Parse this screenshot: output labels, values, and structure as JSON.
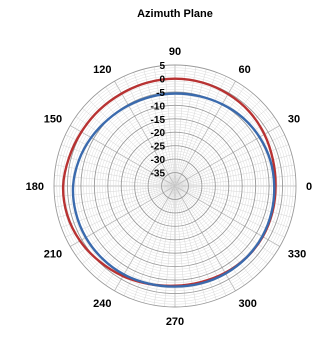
{
  "chart_data": {
    "type": "polar-line",
    "title": "Azimuth Plane",
    "angle_ticks": [
      "0",
      "30",
      "60",
      "90",
      "120",
      "150",
      "180",
      "210",
      "240",
      "270",
      "300",
      "330"
    ],
    "angle_tick_values": [
      0,
      30,
      60,
      90,
      120,
      150,
      180,
      210,
      240,
      270,
      300,
      330
    ],
    "radial_ticks": [
      "5",
      "0",
      "-5",
      "-10",
      "-15",
      "-20",
      "-25",
      "-30",
      "-35"
    ],
    "radial_tick_values": [
      5,
      0,
      -5,
      -10,
      -15,
      -20,
      -25,
      -30,
      -35
    ],
    "rlim": [
      -40,
      5
    ],
    "grid": true,
    "series": [
      {
        "color": "#b83232",
        "angles": [
          0,
          15,
          30,
          45,
          60,
          75,
          90,
          105,
          120,
          135,
          150,
          165,
          180,
          195,
          210,
          225,
          240,
          255,
          270,
          285,
          300,
          315,
          330,
          345
        ],
        "values": [
          -2.6,
          -2.3,
          -1.6,
          -0.9,
          -0.5,
          -0.2,
          -0.1,
          -0.2,
          -0.3,
          -0.1,
          0.2,
          0.8,
          1.6,
          1.5,
          0.8,
          -0.3,
          -1.3,
          -2.3,
          -2.9,
          -3.0,
          -2.7,
          -2.4,
          -2.3,
          -2.5
        ]
      },
      {
        "color": "#3a6aad",
        "angles": [
          0,
          15,
          30,
          45,
          60,
          75,
          90,
          105,
          120,
          135,
          150,
          165,
          180,
          195,
          210,
          225,
          240,
          255,
          270,
          285,
          300,
          315,
          330,
          345
        ],
        "values": [
          -3.1,
          -3.3,
          -3.7,
          -4.2,
          -4.9,
          -5.4,
          -5.6,
          -5.6,
          -5.4,
          -4.9,
          -4.0,
          -3.0,
          -2.1,
          -1.8,
          -1.7,
          -1.8,
          -2.0,
          -2.4,
          -2.6,
          -2.5,
          -2.4,
          -2.4,
          -2.5,
          -2.8
        ]
      }
    ]
  }
}
